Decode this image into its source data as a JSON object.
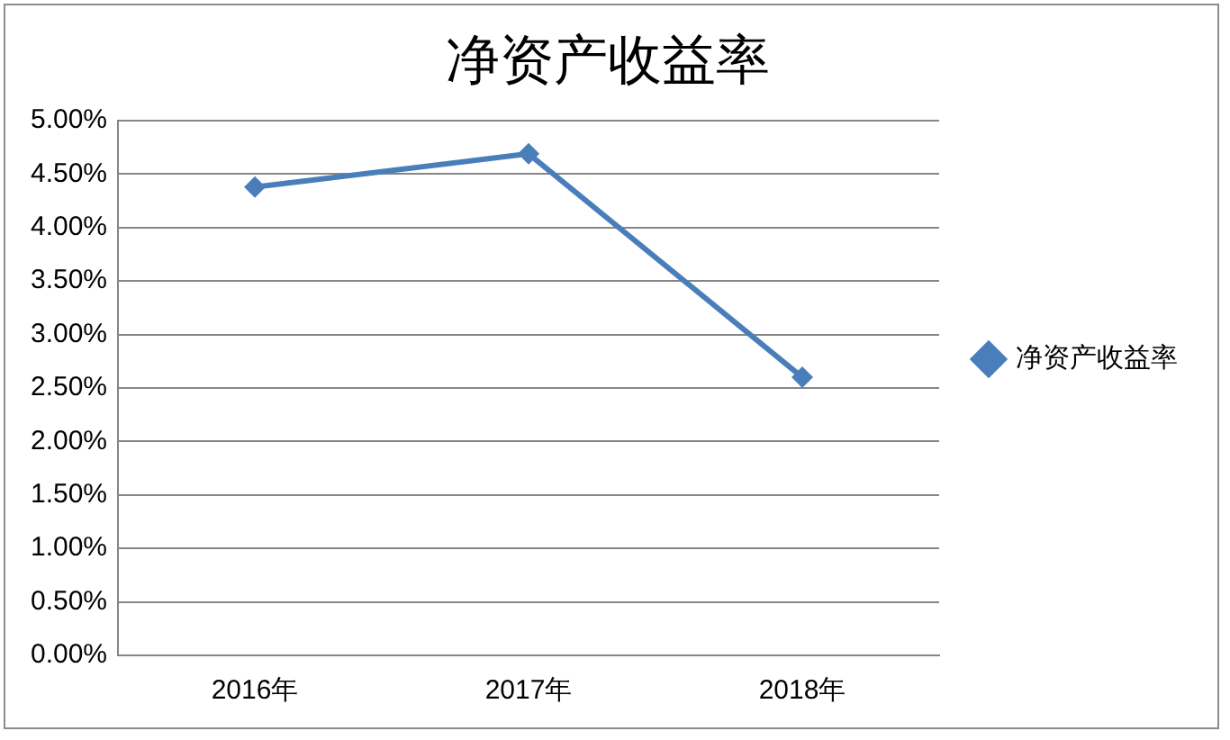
{
  "chart_data": {
    "type": "line",
    "title": "净资产收益率",
    "categories": [
      "2016年",
      "2017年",
      "2018年"
    ],
    "series": [
      {
        "name": "净资产收益率",
        "color": "#4a7ebb",
        "values": [
          4.38,
          4.69,
          2.6
        ]
      }
    ],
    "ylim": [
      0,
      5
    ],
    "yticks": [
      {
        "value": 0,
        "label": "0.00%"
      },
      {
        "value": 0.5,
        "label": "0.50%"
      },
      {
        "value": 1,
        "label": "1.00%"
      },
      {
        "value": 1.5,
        "label": "1.50%"
      },
      {
        "value": 2,
        "label": "2.00%"
      },
      {
        "value": 2.5,
        "label": "2.50%"
      },
      {
        "value": 3,
        "label": "3.00%"
      },
      {
        "value": 3.5,
        "label": "3.50%"
      },
      {
        "value": 4,
        "label": "4.00%"
      },
      {
        "value": 4.5,
        "label": "4.50%"
      },
      {
        "value": 5,
        "label": "5.00%"
      }
    ],
    "grid": "y",
    "legend": "right",
    "marker": "diamond",
    "line_style": "solid"
  }
}
